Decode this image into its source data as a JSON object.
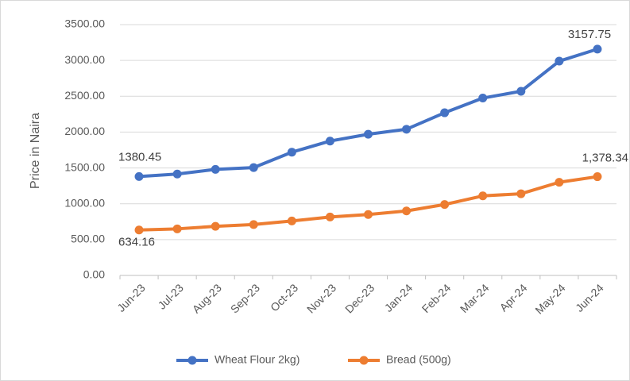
{
  "chart_data": {
    "type": "line",
    "y_label": "Price in Naira",
    "categories": [
      "Jun-23",
      "Jul-23",
      "Aug-23",
      "Sep-23",
      "Oct-23",
      "Nov-23",
      "Dec-23",
      "Jan-24",
      "Feb-24",
      "Mar-24",
      "Apr-24",
      "May-24",
      "Jun-24"
    ],
    "series": [
      {
        "name": "Wheat Flour 2kg)",
        "color": "#4472c4",
        "values": [
          1380.45,
          1415,
          1480,
          1505,
          1720,
          1875,
          1970,
          2040,
          2270,
          2475,
          2570,
          2990,
          3157.75
        ],
        "value_labels": [
          "1380.45",
          null,
          null,
          null,
          null,
          null,
          null,
          null,
          null,
          null,
          null,
          null,
          "3157.75"
        ]
      },
      {
        "name": "Bread (500g)",
        "color": "#ed7d31",
        "values": [
          634.16,
          650,
          685,
          710,
          760,
          815,
          850,
          900,
          990,
          1110,
          1140,
          1300,
          1378.34
        ],
        "value_labels": [
          "634.16",
          null,
          null,
          null,
          null,
          null,
          null,
          null,
          null,
          null,
          null,
          null,
          "1,378.34"
        ]
      }
    ],
    "ylim": [
      0,
      3500
    ],
    "yticks": [
      {
        "value": 0,
        "label": "0.00"
      },
      {
        "value": 500,
        "label": "500.00"
      },
      {
        "value": 1000,
        "label": "1000.00"
      },
      {
        "value": 1500,
        "label": "1500.00"
      },
      {
        "value": 2000,
        "label": "2000.00"
      },
      {
        "value": 2500,
        "label": "2500.00"
      },
      {
        "value": 3000,
        "label": "3000.00"
      },
      {
        "value": 3500,
        "label": "3500.00"
      }
    ],
    "grid": true,
    "legend": "bottom"
  }
}
